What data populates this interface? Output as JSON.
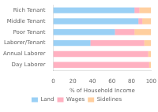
{
  "chart_data": {
    "type": "bar",
    "orientation": "horizontal",
    "stacked": true,
    "categories": [
      "Rich Tenant",
      "Middle Tenant",
      "Poor Tenant",
      "Laborer/Tenant",
      "Annual Laborer",
      "Day Laborer"
    ],
    "series": [
      {
        "name": "Land",
        "values": [
          83,
          87,
          63,
          38,
          0,
          0
        ]
      },
      {
        "name": "Wages",
        "values": [
          5,
          4,
          20,
          55,
          97,
          98
        ]
      },
      {
        "name": "Sidelines",
        "values": [
          12,
          9,
          17,
          7,
          3,
          2
        ]
      }
    ],
    "xlabel": "% of Household Income",
    "xlim": [
      0,
      100
    ],
    "xticks": [
      0,
      20,
      40,
      60,
      80,
      100
    ],
    "grid": false,
    "legend": "bottom"
  }
}
